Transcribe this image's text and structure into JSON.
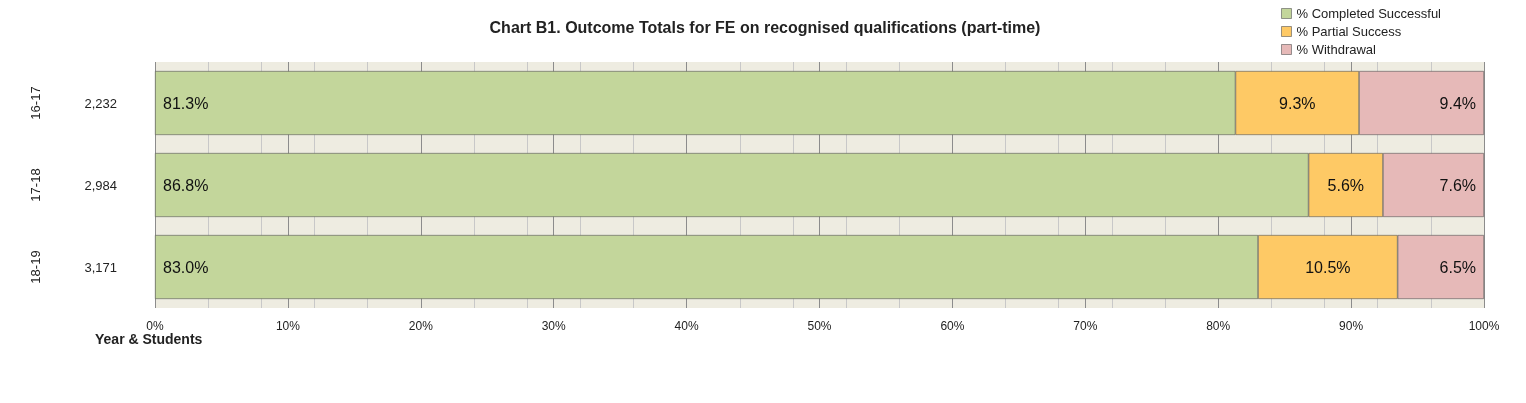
{
  "chart_data": {
    "type": "bar",
    "orientation": "horizontal",
    "stacked": true,
    "title": "Chart B1. Outcome Totals for FE on recognised qualifications (part-time)",
    "ylabel": "Year & Students",
    "categories": [
      "16-17",
      "17-18",
      "18-19"
    ],
    "y2_categories": [
      "2,232",
      "2,984",
      "3,171"
    ],
    "series": [
      {
        "name": "% Completed Successful",
        "color": "#c3d69b",
        "values": [
          81.3,
          86.8,
          83.0
        ],
        "value_labels": [
          "81.3%",
          "86.8%",
          "83.0%"
        ]
      },
      {
        "name": "% Partial Success",
        "color": "#fec965",
        "values": [
          9.3,
          5.6,
          10.5
        ],
        "value_labels": [
          "9.3%",
          "5.6%",
          "10.5%"
        ]
      },
      {
        "name": "% Withdrawal",
        "color": "#e6b9b8",
        "values": [
          9.4,
          7.6,
          6.5
        ],
        "value_labels": [
          "9.4%",
          "7.6%",
          "6.5%"
        ]
      }
    ],
    "xlim": [
      0,
      100
    ],
    "xticks": [
      {
        "value": 0,
        "label": "0%"
      },
      {
        "value": 10,
        "label": "10%"
      },
      {
        "value": 20,
        "label": "20%"
      },
      {
        "value": 30,
        "label": "30%"
      },
      {
        "value": 40,
        "label": "40%"
      },
      {
        "value": 50,
        "label": "50%"
      },
      {
        "value": 60,
        "label": "60%"
      },
      {
        "value": 70,
        "label": "70%"
      },
      {
        "value": 80,
        "label": "80%"
      },
      {
        "value": 90,
        "label": "90%"
      },
      {
        "value": 100,
        "label": "100%"
      }
    ],
    "grid": "x",
    "legend": "top right"
  }
}
